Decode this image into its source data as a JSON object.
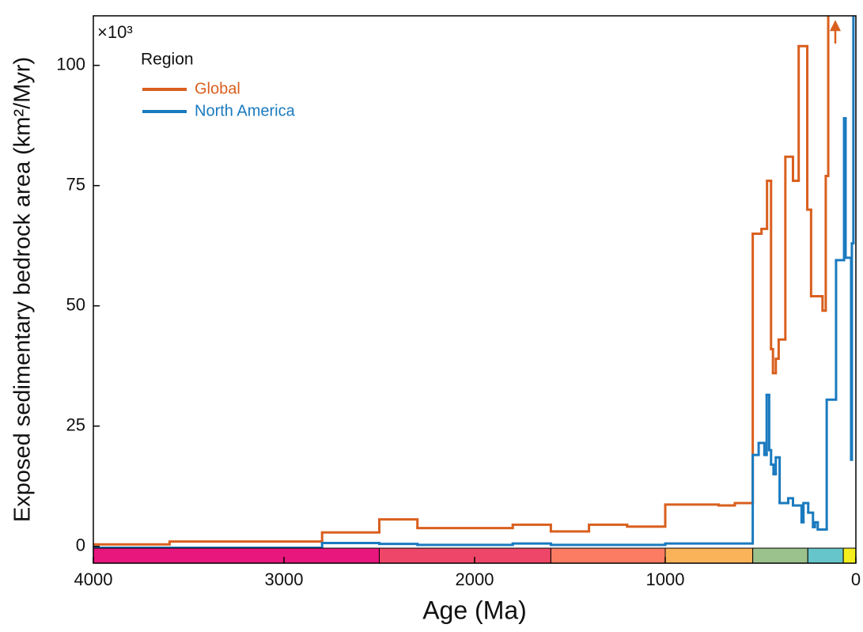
{
  "chart_data": {
    "type": "step",
    "multiplier": "×10³",
    "ylabel": "Exposed sedimentary bedrock area (km²/Myr)",
    "xlabel": "Age (Ma)",
    "legend_title": "Region",
    "xlim": [
      4000,
      0
    ],
    "xticks": [
      4000,
      3000,
      2000,
      1000,
      0
    ],
    "ylim": [
      -3.5,
      110.3
    ],
    "yticks": [
      0,
      25,
      50,
      75,
      100
    ],
    "series": [
      {
        "name": "Global",
        "color": "#d95f1e",
        "x": [
          4000,
          3600,
          2800,
          2500,
          2300,
          1800,
          1600,
          1400,
          1200,
          1000,
          720,
          635,
          541,
          495,
          466,
          445,
          435,
          420,
          405,
          370,
          330,
          300,
          255,
          235,
          175,
          158,
          145
        ],
        "values": [
          0.4,
          1.0,
          2.9,
          5.6,
          3.8,
          4.5,
          3.1,
          4.5,
          4.1,
          8.7,
          8.5,
          9.0,
          65,
          66,
          76,
          41,
          36,
          39,
          43,
          81,
          76,
          104,
          70,
          52,
          49,
          77,
          120
        ]
      },
      {
        "name": "North America",
        "color": "#1a7abf",
        "x": [
          4000,
          2800,
          2500,
          2300,
          1800,
          1600,
          1000,
          541,
          510,
          480,
          468,
          455,
          445,
          432,
          420,
          400,
          355,
          330,
          285,
          275,
          250,
          225,
          215,
          200,
          153,
          104,
          62,
          54,
          25,
          21,
          13
        ],
        "values": [
          -0.3,
          0.7,
          0.5,
          0.3,
          0.6,
          0.3,
          0.6,
          19,
          21.5,
          19,
          31.5,
          20,
          17,
          15,
          18.5,
          9,
          10,
          8.5,
          5,
          9,
          7,
          4,
          5,
          3.5,
          30.5,
          59.5,
          89,
          60,
          18,
          63,
          120
        ]
      }
    ],
    "timescale": {
      "boundaries": [
        4000,
        2500,
        1600,
        1000,
        541,
        252,
        66,
        0
      ],
      "colors": [
        "#e8177e",
        "#ee4668",
        "#fb7c62",
        "#fbb359",
        "#9bc18c",
        "#66c5ca",
        "#f2ee1f"
      ]
    }
  }
}
